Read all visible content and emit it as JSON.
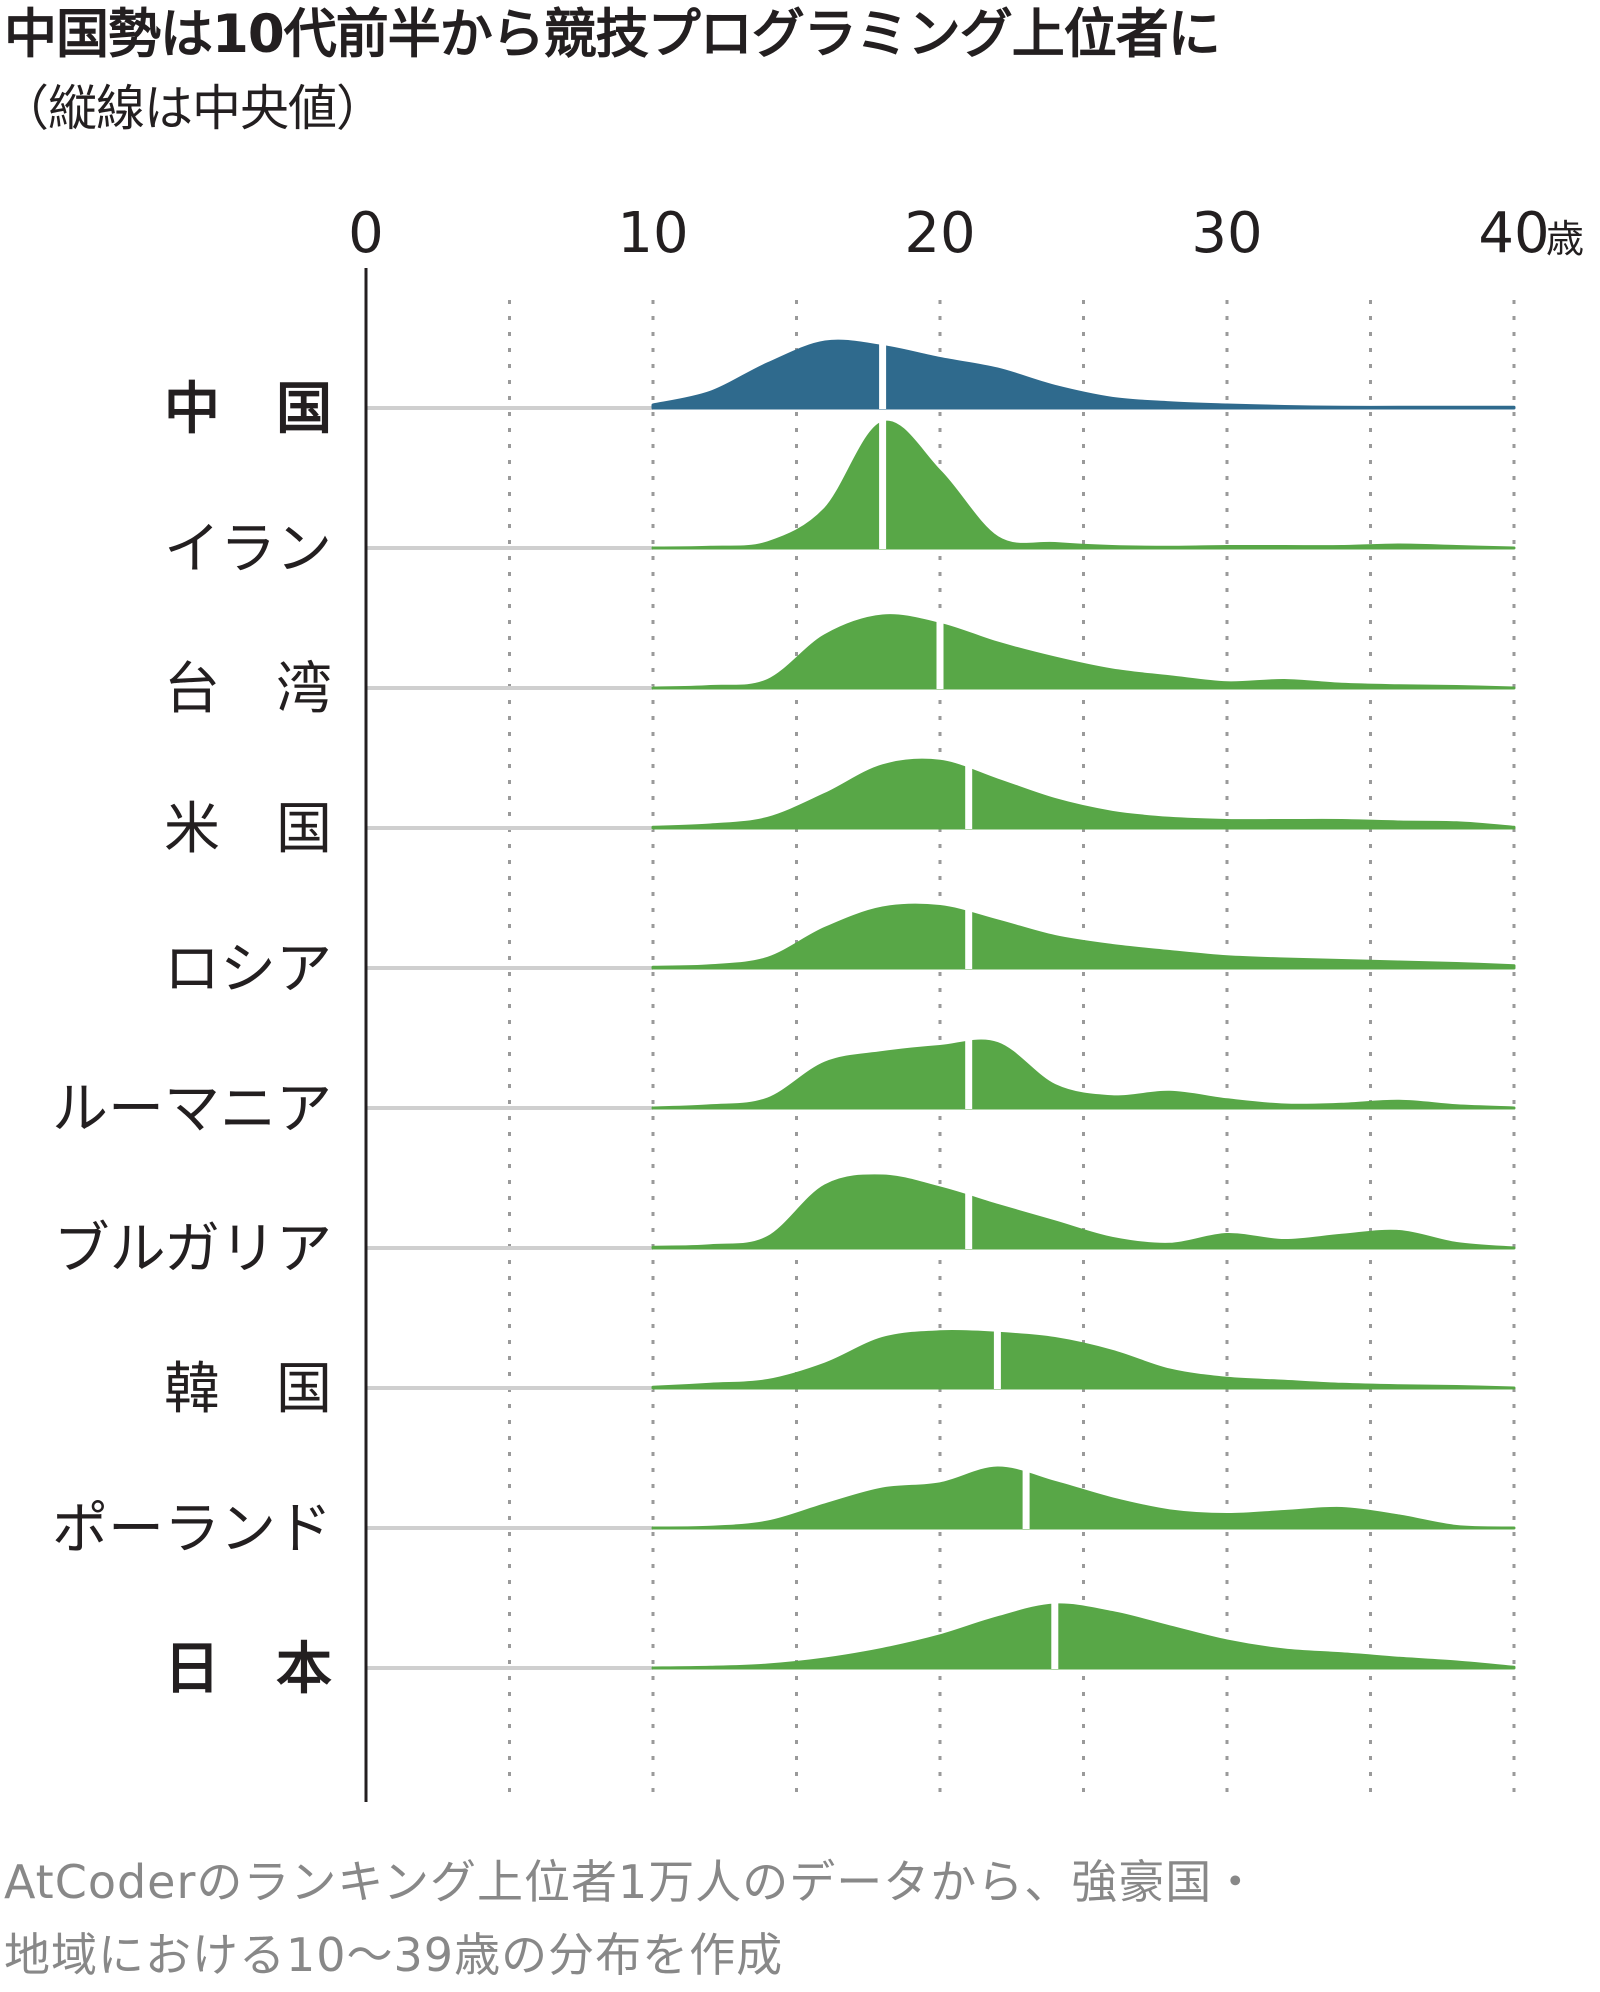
{
  "title": "中国勢は10代前半から競技プログラミング上位者に",
  "subtitle": "（縦線は中央値）",
  "note_line1": "AtCoderのランキング上位者1万人のデータから、強豪国・",
  "note_line2": "地域における10〜39歳の分布を作成",
  "colors": {
    "highlight": "#2f6a8d",
    "default": "#58a747",
    "axis": "#231f20",
    "baseline": "#cfcfcf",
    "grid": "#9a9a9a",
    "median": "#ffffff"
  },
  "chart_data": {
    "type": "ridgeline",
    "xlabel": "",
    "x_unit": "歳",
    "xlim": [
      0,
      40
    ],
    "x_ticks": [
      0,
      10,
      20,
      30,
      40
    ],
    "x_tick_labels": [
      "0",
      "10",
      "20",
      "30",
      "40"
    ],
    "x_data_range": [
      10,
      40
    ],
    "grid": "dotted vertical lines every 5 years",
    "x": [
      10,
      12,
      14,
      16,
      18,
      20,
      22,
      24,
      26,
      28,
      30,
      32,
      34,
      36,
      38,
      40
    ],
    "series": [
      {
        "name": "中　国",
        "bold": true,
        "highlight": true,
        "median": 18,
        "values": [
          0.04,
          0.21,
          0.59,
          0.88,
          0.82,
          0.66,
          0.52,
          0.29,
          0.13,
          0.07,
          0.04,
          0.02,
          0.01,
          0.01,
          0.01,
          0.01
        ]
      },
      {
        "name": "イラン",
        "bold": false,
        "highlight": false,
        "median": 18,
        "values": [
          0.0,
          0.01,
          0.07,
          0.52,
          1.67,
          1.02,
          0.14,
          0.06,
          0.02,
          0.01,
          0.02,
          0.02,
          0.02,
          0.04,
          0.02,
          0.0
        ]
      },
      {
        "name": "台　湾",
        "bold": false,
        "highlight": false,
        "median": 20,
        "values": [
          0.0,
          0.02,
          0.1,
          0.7,
          0.96,
          0.85,
          0.6,
          0.4,
          0.24,
          0.15,
          0.07,
          0.1,
          0.05,
          0.03,
          0.02,
          0.0
        ]
      },
      {
        "name": "米　国",
        "bold": false,
        "highlight": false,
        "median": 21,
        "values": [
          0.01,
          0.04,
          0.13,
          0.45,
          0.83,
          0.89,
          0.64,
          0.38,
          0.21,
          0.13,
          0.1,
          0.1,
          0.1,
          0.08,
          0.07,
          0.01
        ]
      },
      {
        "name": "ロシア",
        "bold": false,
        "highlight": false,
        "median": 21,
        "values": [
          0.01,
          0.03,
          0.13,
          0.53,
          0.8,
          0.82,
          0.63,
          0.42,
          0.3,
          0.22,
          0.15,
          0.12,
          0.1,
          0.08,
          0.06,
          0.03
        ]
      },
      {
        "name": "ルーマニア",
        "bold": false,
        "highlight": false,
        "median": 21,
        "values": [
          0.0,
          0.03,
          0.12,
          0.6,
          0.74,
          0.82,
          0.86,
          0.3,
          0.15,
          0.21,
          0.11,
          0.04,
          0.05,
          0.09,
          0.03,
          0.0
        ]
      },
      {
        "name": "ブルガリア",
        "bold": false,
        "highlight": false,
        "median": 21,
        "values": [
          0.01,
          0.03,
          0.14,
          0.83,
          0.96,
          0.8,
          0.57,
          0.35,
          0.13,
          0.05,
          0.18,
          0.1,
          0.17,
          0.22,
          0.06,
          0.0
        ]
      },
      {
        "name": "韓　国",
        "bold": false,
        "highlight": false,
        "median": 22,
        "values": [
          0.01,
          0.05,
          0.1,
          0.32,
          0.66,
          0.75,
          0.73,
          0.66,
          0.49,
          0.24,
          0.13,
          0.09,
          0.05,
          0.03,
          0.02,
          0.0
        ]
      },
      {
        "name": "ポーランド",
        "bold": false,
        "highlight": false,
        "median": 23,
        "values": [
          0.0,
          0.01,
          0.08,
          0.31,
          0.52,
          0.59,
          0.8,
          0.61,
          0.39,
          0.23,
          0.18,
          0.22,
          0.26,
          0.16,
          0.02,
          0.0
        ]
      },
      {
        "name": "日　本",
        "bold": true,
        "highlight": false,
        "median": 24,
        "values": [
          0.0,
          0.01,
          0.04,
          0.12,
          0.25,
          0.43,
          0.67,
          0.84,
          0.74,
          0.55,
          0.36,
          0.24,
          0.19,
          0.13,
          0.08,
          0.01
        ]
      }
    ]
  }
}
